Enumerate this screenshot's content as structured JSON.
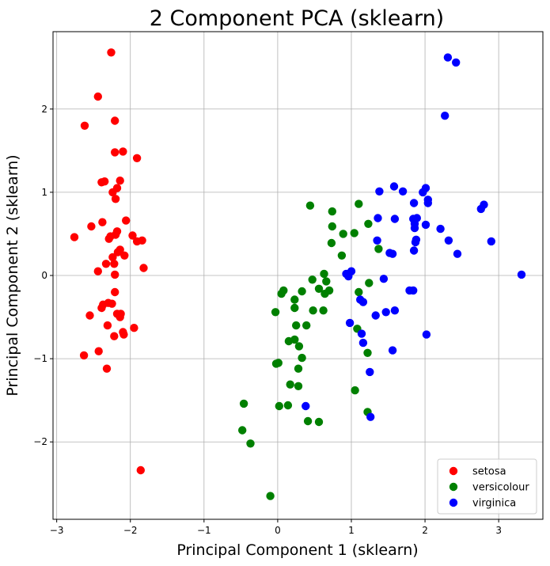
{
  "chart_data": {
    "type": "scatter",
    "title": "2 Component PCA (sklearn)",
    "xlabel": "Principal Component 1 (sklearn)",
    "ylabel": "Principal Component 2 (sklearn)",
    "xlim": [
      -3.05,
      3.6
    ],
    "ylim": [
      -2.93,
      2.93
    ],
    "xticks": [
      -3,
      -2,
      -1,
      0,
      1,
      2,
      3
    ],
    "xtick_labels": [
      "−3",
      "−2",
      "−1",
      "0",
      "1",
      "2",
      "3"
    ],
    "yticks": [
      -2,
      -1,
      0,
      1,
      2
    ],
    "ytick_labels": [
      "−2",
      "−1",
      "0",
      "1",
      "2"
    ],
    "grid": true,
    "legend_position": "bottom-right",
    "series": [
      {
        "name": "setosa",
        "color": "#ff0000",
        "points": [
          [
            -2.26,
            2.68
          ],
          [
            -2.44,
            2.15
          ],
          [
            -2.62,
            1.8
          ],
          [
            -2.21,
            1.86
          ],
          [
            -2.21,
            1.48
          ],
          [
            -2.1,
            1.49
          ],
          [
            -1.91,
            1.41
          ],
          [
            -2.39,
            1.12
          ],
          [
            -2.35,
            1.13
          ],
          [
            -2.14,
            1.14
          ],
          [
            -2.18,
            1.05
          ],
          [
            -2.24,
            1.0
          ],
          [
            -2.2,
            0.92
          ],
          [
            -2.76,
            0.46
          ],
          [
            -2.53,
            0.59
          ],
          [
            -2.38,
            0.64
          ],
          [
            -2.06,
            0.66
          ],
          [
            -2.18,
            0.53
          ],
          [
            -2.27,
            0.47
          ],
          [
            -2.29,
            0.44
          ],
          [
            -2.2,
            0.49
          ],
          [
            -1.97,
            0.48
          ],
          [
            -1.91,
            0.41
          ],
          [
            -1.84,
            0.42
          ],
          [
            -2.14,
            0.31
          ],
          [
            -2.17,
            0.28
          ],
          [
            -2.24,
            0.22
          ],
          [
            -2.08,
            0.24
          ],
          [
            -2.33,
            0.14
          ],
          [
            -2.22,
            0.14
          ],
          [
            -1.82,
            0.09
          ],
          [
            -2.44,
            0.05
          ],
          [
            -2.21,
            0.01
          ],
          [
            -2.21,
            -0.2
          ],
          [
            -2.3,
            -0.33
          ],
          [
            -2.25,
            -0.34
          ],
          [
            -2.37,
            -0.35
          ],
          [
            -2.39,
            -0.39
          ],
          [
            -2.55,
            -0.48
          ],
          [
            -2.18,
            -0.46
          ],
          [
            -2.13,
            -0.46
          ],
          [
            -2.14,
            -0.5
          ],
          [
            -2.31,
            -0.6
          ],
          [
            -1.95,
            -0.63
          ],
          [
            -2.1,
            -0.68
          ],
          [
            -2.09,
            -0.71
          ],
          [
            -2.22,
            -0.73
          ],
          [
            -2.43,
            -0.91
          ],
          [
            -2.63,
            -0.96
          ],
          [
            -2.32,
            -1.12
          ],
          [
            -1.86,
            -2.34
          ]
        ]
      },
      {
        "name": "versicolour",
        "color": "#008000",
        "points": [
          [
            0.44,
            0.84
          ],
          [
            1.1,
            0.86
          ],
          [
            0.74,
            0.77
          ],
          [
            0.74,
            0.59
          ],
          [
            1.23,
            0.62
          ],
          [
            0.89,
            0.5
          ],
          [
            1.04,
            0.51
          ],
          [
            0.73,
            0.39
          ],
          [
            1.37,
            0.32
          ],
          [
            0.87,
            0.24
          ],
          [
            0.63,
            0.02
          ],
          [
            0.47,
            -0.05
          ],
          [
            0.66,
            -0.07
          ],
          [
            1.24,
            -0.09
          ],
          [
            0.08,
            -0.18
          ],
          [
            0.05,
            -0.22
          ],
          [
            0.33,
            -0.19
          ],
          [
            0.56,
            -0.16
          ],
          [
            0.7,
            -0.18
          ],
          [
            0.64,
            -0.22
          ],
          [
            1.1,
            -0.2
          ],
          [
            0.23,
            -0.29
          ],
          [
            0.23,
            -0.39
          ],
          [
            0.48,
            -0.42
          ],
          [
            0.62,
            -0.42
          ],
          [
            -0.03,
            -0.44
          ],
          [
            0.25,
            -0.6
          ],
          [
            0.39,
            -0.6
          ],
          [
            1.08,
            -0.64
          ],
          [
            0.23,
            -0.77
          ],
          [
            0.15,
            -0.79
          ],
          [
            0.29,
            -0.85
          ],
          [
            1.22,
            -0.93
          ],
          [
            0.33,
            -0.99
          ],
          [
            -0.02,
            -1.06
          ],
          [
            0.01,
            -1.05
          ],
          [
            0.28,
            -1.12
          ],
          [
            0.17,
            -1.31
          ],
          [
            0.28,
            -1.33
          ],
          [
            1.05,
            -1.38
          ],
          [
            -0.46,
            -1.54
          ],
          [
            0.14,
            -1.56
          ],
          [
            0.02,
            -1.57
          ],
          [
            1.22,
            -1.64
          ],
          [
            0.41,
            -1.75
          ],
          [
            0.56,
            -1.76
          ],
          [
            -0.48,
            -1.86
          ],
          [
            -0.37,
            -2.02
          ],
          [
            -0.1,
            -2.65
          ]
        ]
      },
      {
        "name": "virginica",
        "color": "#0000ff",
        "points": [
          [
            2.31,
            2.62
          ],
          [
            2.42,
            2.56
          ],
          [
            2.27,
            1.92
          ],
          [
            1.58,
            1.07
          ],
          [
            2.01,
            1.05
          ],
          [
            1.7,
            1.01
          ],
          [
            1.38,
            1.01
          ],
          [
            1.97,
            1.0
          ],
          [
            2.04,
            0.91
          ],
          [
            2.04,
            0.87
          ],
          [
            1.85,
            0.87
          ],
          [
            2.8,
            0.85
          ],
          [
            2.76,
            0.8
          ],
          [
            1.89,
            0.69
          ],
          [
            1.36,
            0.69
          ],
          [
            1.84,
            0.68
          ],
          [
            1.59,
            0.68
          ],
          [
            1.86,
            0.62
          ],
          [
            2.01,
            0.61
          ],
          [
            2.21,
            0.56
          ],
          [
            1.86,
            0.57
          ],
          [
            1.88,
            0.43
          ],
          [
            1.35,
            0.42
          ],
          [
            1.87,
            0.4
          ],
          [
            2.32,
            0.42
          ],
          [
            2.9,
            0.41
          ],
          [
            1.85,
            0.3
          ],
          [
            1.52,
            0.27
          ],
          [
            1.56,
            0.26
          ],
          [
            2.44,
            0.26
          ],
          [
            1.0,
            0.05
          ],
          [
            0.93,
            0.02
          ],
          [
            3.31,
            0.01
          ],
          [
            0.96,
            -0.01
          ],
          [
            1.44,
            -0.04
          ],
          [
            1.79,
            -0.18
          ],
          [
            1.84,
            -0.18
          ],
          [
            1.12,
            -0.29
          ],
          [
            1.16,
            -0.32
          ],
          [
            1.33,
            -0.48
          ],
          [
            1.59,
            -0.42
          ],
          [
            1.47,
            -0.44
          ],
          [
            0.98,
            -0.57
          ],
          [
            1.14,
            -0.7
          ],
          [
            2.02,
            -0.71
          ],
          [
            1.16,
            -0.81
          ],
          [
            1.56,
            -0.9
          ],
          [
            1.25,
            -1.16
          ],
          [
            0.38,
            -1.57
          ],
          [
            1.26,
            -1.7
          ]
        ]
      }
    ]
  }
}
